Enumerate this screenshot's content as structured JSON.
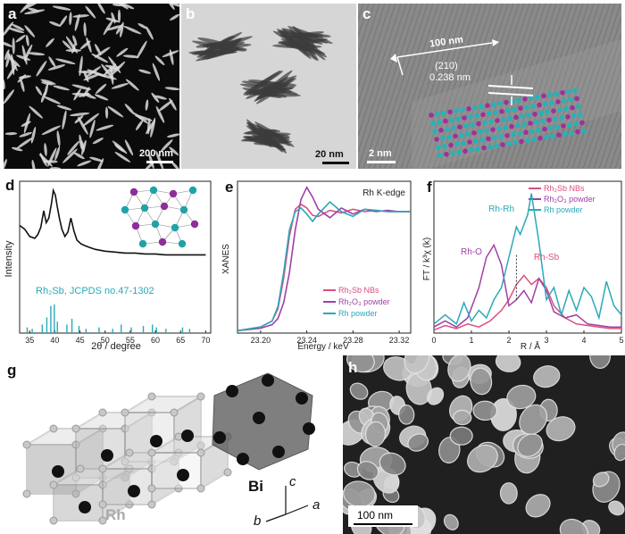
{
  "panels": {
    "a": {
      "label": "a",
      "scale": "200 nm"
    },
    "b": {
      "label": "b",
      "scale": "20 nm"
    },
    "c": {
      "label": "c",
      "scale": "2 nm",
      "growth": "100 nm",
      "plane": "(210)",
      "spacing": "0.238 nm"
    },
    "d": {
      "label": "d",
      "ylabel": "Intensity",
      "xlabel": "2θ / degree",
      "ref": "Rh₂Sb, JCPDS no.47-1302",
      "xticks": [
        "35",
        "40",
        "45",
        "50",
        "55",
        "60",
        "65",
        "70"
      ]
    },
    "e": {
      "label": "e",
      "title": "Rh K-edge",
      "ylabel": "XANES",
      "xlabel": "Energy / keV",
      "xticks": [
        "23.20",
        "23.24",
        "23.28",
        "23.32"
      ]
    },
    "f": {
      "label": "f",
      "ylabel": "FT / k³χ (k)",
      "xlabel": "R / Å",
      "xticks": [
        "0",
        "1",
        "2",
        "3",
        "4",
        "5"
      ],
      "annotations": [
        "Rh-Rh",
        "Rh-O",
        "Rh-Sb"
      ]
    },
    "g": {
      "label": "g",
      "bi": "Bi",
      "rh": "Rh",
      "axis_c": "c",
      "axis_a": "a",
      "axis_b": "b"
    },
    "h": {
      "label": "h",
      "scale": "100 nm"
    }
  },
  "legend_e": [
    "Rh₂Sb NBs",
    "Rh₂O₃ powder",
    "Rh powder"
  ],
  "legend_f": [
    "Rh₂Sb NBs",
    "Rh₂O₃ powder",
    "Rh powder"
  ],
  "colors": {
    "pink": "#d9507f",
    "purple": "#a03fa6",
    "cyan": "#2aa9b7"
  },
  "chart_data": [
    {
      "type": "line",
      "panel": "d",
      "xlabel": "2θ / degree",
      "ylabel": "Intensity",
      "x": [
        33,
        34,
        35,
        36,
        36.6,
        37.2,
        37.8,
        38.3,
        38.8,
        39.3,
        39.7,
        40.1,
        40.5,
        40.9,
        41.4,
        42,
        42.6,
        43.2,
        43.8,
        44.4,
        45.2,
        46,
        47,
        48,
        50,
        52,
        54,
        56,
        58,
        60,
        62,
        64,
        66,
        68,
        70
      ],
      "y": [
        0.62,
        0.58,
        0.5,
        0.48,
        0.52,
        0.6,
        0.78,
        0.65,
        0.7,
        0.85,
        1.0,
        0.95,
        0.82,
        0.7,
        0.58,
        0.5,
        0.55,
        0.7,
        0.56,
        0.46,
        0.42,
        0.4,
        0.38,
        0.36,
        0.34,
        0.33,
        0.32,
        0.32,
        0.31,
        0.31,
        0.3,
        0.3,
        0.3,
        0.3,
        0.3
      ],
      "xlim": [
        33,
        71
      ],
      "reference_peaks": [
        [
          34.5,
          0.2
        ],
        [
          35.5,
          0.15
        ],
        [
          37.5,
          0.3
        ],
        [
          38.4,
          0.55
        ],
        [
          39.2,
          0.95
        ],
        [
          39.9,
          1.0
        ],
        [
          40.5,
          0.4
        ],
        [
          42.4,
          0.3
        ],
        [
          43.4,
          0.5
        ],
        [
          44.8,
          0.25
        ],
        [
          46.2,
          0.15
        ],
        [
          48.8,
          0.2
        ],
        [
          51.5,
          0.15
        ],
        [
          53.2,
          0.3
        ],
        [
          55.2,
          0.2
        ],
        [
          57.6,
          0.25
        ],
        [
          59.4,
          0.3
        ],
        [
          60.2,
          0.2
        ],
        [
          62.1,
          0.15
        ],
        [
          65.4,
          0.2
        ],
        [
          66.8,
          0.15
        ]
      ]
    },
    {
      "type": "line",
      "panel": "e",
      "title": "Rh K-edge",
      "xlabel": "Energy / keV",
      "ylabel": "XANES",
      "xlim": [
        23.18,
        23.33
      ],
      "ylim": [
        0,
        1.25
      ],
      "series": [
        {
          "name": "Rh₂Sb NBs",
          "x": [
            23.18,
            23.2,
            23.21,
            23.215,
            23.22,
            23.225,
            23.23,
            23.235,
            23.24,
            23.245,
            23.25,
            23.26,
            23.27,
            23.28,
            23.29,
            23.3,
            23.31,
            23.32,
            23.33
          ],
          "y": [
            0.02,
            0.05,
            0.1,
            0.2,
            0.45,
            0.8,
            1.02,
            1.06,
            1.03,
            0.97,
            0.96,
            1.01,
            0.99,
            1.02,
            1.0,
            1.01,
            1.0,
            1.0,
            1.0
          ]
        },
        {
          "name": "Rh₂O₃ powder",
          "x": [
            23.18,
            23.2,
            23.21,
            23.215,
            23.22,
            23.225,
            23.23,
            23.235,
            23.24,
            23.245,
            23.25,
            23.26,
            23.27,
            23.28,
            23.29,
            23.3,
            23.31,
            23.32,
            23.33
          ],
          "y": [
            0.02,
            0.04,
            0.07,
            0.12,
            0.25,
            0.5,
            0.85,
            1.1,
            1.2,
            1.12,
            1.02,
            0.95,
            1.03,
            0.98,
            1.02,
            1.0,
            1.01,
            1.0,
            1.0
          ]
        },
        {
          "name": "Rh powder",
          "x": [
            23.18,
            23.2,
            23.21,
            23.215,
            23.22,
            23.225,
            23.23,
            23.235,
            23.24,
            23.245,
            23.25,
            23.26,
            23.27,
            23.28,
            23.29,
            23.3,
            23.31,
            23.32,
            23.33
          ],
          "y": [
            0.02,
            0.05,
            0.1,
            0.22,
            0.5,
            0.85,
            1.0,
            1.03,
            0.98,
            0.92,
            0.98,
            1.08,
            1.0,
            0.96,
            1.02,
            1.01,
            1.0,
            1.0,
            1.0
          ]
        }
      ]
    },
    {
      "type": "line",
      "panel": "f",
      "xlabel": "R / Å",
      "ylabel": "FT / k³χ (k)",
      "xlim": [
        0,
        5
      ],
      "ylim": [
        0,
        1.0
      ],
      "series": [
        {
          "name": "Rh₂Sb NBs",
          "x": [
            0,
            0.3,
            0.6,
            0.9,
            1.2,
            1.5,
            1.8,
            2.0,
            2.2,
            2.4,
            2.6,
            2.8,
            3.0,
            3.2,
            3.5,
            3.8,
            4.1,
            4.4,
            4.7,
            5.0
          ],
          "y": [
            0.02,
            0.05,
            0.03,
            0.06,
            0.04,
            0.08,
            0.15,
            0.22,
            0.32,
            0.38,
            0.32,
            0.36,
            0.3,
            0.18,
            0.1,
            0.06,
            0.05,
            0.04,
            0.03,
            0.03
          ]
        },
        {
          "name": "Rh₂O₃ powder",
          "x": [
            0,
            0.3,
            0.6,
            0.9,
            1.2,
            1.4,
            1.6,
            1.8,
            2.0,
            2.2,
            2.4,
            2.6,
            2.8,
            3.0,
            3.2,
            3.5,
            3.8,
            4.1,
            4.4,
            4.7,
            5.0
          ],
          "y": [
            0.04,
            0.08,
            0.04,
            0.1,
            0.3,
            0.5,
            0.58,
            0.45,
            0.18,
            0.22,
            0.28,
            0.2,
            0.36,
            0.28,
            0.14,
            0.1,
            0.12,
            0.06,
            0.05,
            0.04,
            0.04
          ]
        },
        {
          "name": "Rh powder",
          "x": [
            0,
            0.3,
            0.6,
            0.8,
            1.0,
            1.2,
            1.4,
            1.6,
            1.8,
            2.0,
            2.2,
            2.3,
            2.5,
            2.6,
            2.8,
            3.0,
            3.2,
            3.4,
            3.6,
            3.8,
            4.0,
            4.2,
            4.4,
            4.6,
            4.8,
            5.0
          ],
          "y": [
            0.06,
            0.12,
            0.06,
            0.2,
            0.08,
            0.15,
            0.1,
            0.22,
            0.3,
            0.5,
            0.7,
            0.65,
            0.78,
            0.92,
            0.6,
            0.22,
            0.3,
            0.12,
            0.28,
            0.15,
            0.3,
            0.24,
            0.1,
            0.34,
            0.18,
            0.12
          ]
        }
      ]
    }
  ]
}
